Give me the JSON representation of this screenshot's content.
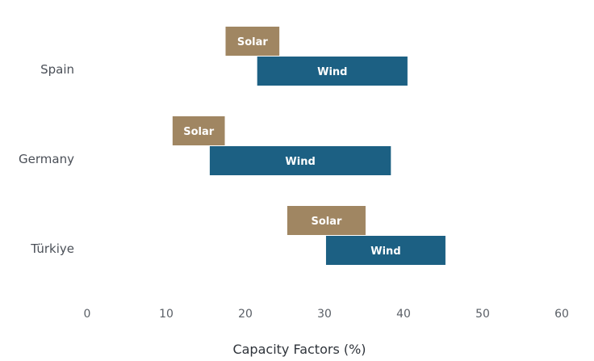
{
  "chart_data": {
    "type": "bar",
    "orientation": "horizontal-range",
    "categories": [
      "Spain",
      "Germany",
      "Türkiye"
    ],
    "series": [
      {
        "name": "Solar",
        "color": "#a08662",
        "ranges": [
          [
            17.5,
            24.3
          ],
          [
            10.8,
            17.4
          ],
          [
            25.3,
            35.2
          ]
        ]
      },
      {
        "name": "Wind",
        "color": "#1c6083",
        "ranges": [
          [
            21.5,
            40.5
          ],
          [
            15.5,
            38.4
          ],
          [
            30.2,
            45.3
          ]
        ]
      }
    ],
    "xlabel": "Capacity Factors (%)",
    "xlim": [
      0,
      60
    ],
    "xticks": [
      "0",
      "10",
      "20",
      "30",
      "40",
      "50",
      "60"
    ],
    "grid": false
  }
}
